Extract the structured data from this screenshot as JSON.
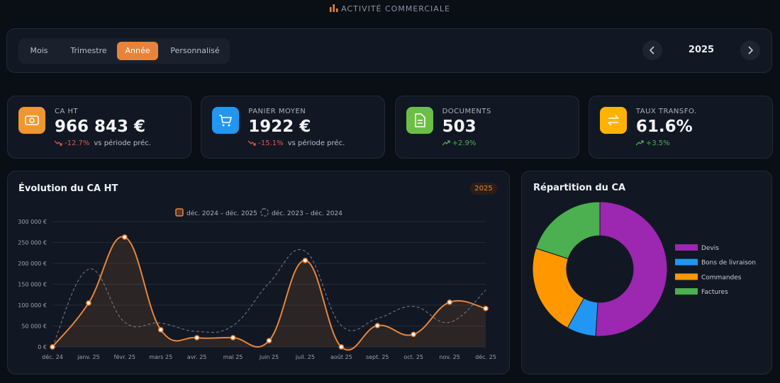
{
  "header": {
    "title": "ACTIVITÉ COMMERCIALE"
  },
  "tabs": [
    "Mois",
    "Trimestre",
    "Année",
    "Personnalisé"
  ],
  "active_tab_index": 2,
  "year": "2025",
  "kpis": [
    {
      "label": "CA HT",
      "value": "966 843 €",
      "change": "-12.7%",
      "trend": "down",
      "note": "vs période préc.",
      "color": "#f0962e"
    },
    {
      "label": "PANIER MOYEN",
      "value": "1922 €",
      "change": "-15.1%",
      "trend": "down",
      "note": "vs période préc.",
      "color": "#2196f3"
    },
    {
      "label": "DOCUMENTS",
      "value": "503",
      "change": "+2.9%",
      "trend": "up",
      "color": "#6cbf45"
    },
    {
      "label": "TAUX TRANSFO.",
      "value": "61.6%",
      "change": "+3.5%",
      "trend": "up",
      "color": "#ffb300"
    }
  ],
  "chart_data": [
    {
      "type": "line",
      "title": "Évolution du CA HT",
      "badge": "2025",
      "categories": [
        "déc. 24",
        "janv. 25",
        "févr. 25",
        "mars 25",
        "avr. 25",
        "mai 25",
        "juin 25",
        "juil. 25",
        "août 25",
        "sept. 25",
        "oct. 25",
        "nov. 25",
        "déc. 25"
      ],
      "series": [
        {
          "name": "déc. 2024 – déc. 2025",
          "color": "#e8843a",
          "values": [
            0,
            105000,
            263000,
            41000,
            22000,
            22000,
            15000,
            207000,
            0,
            51000,
            30000,
            107000,
            92000
          ]
        },
        {
          "name": "déc. 2023 – déc. 2024",
          "color": "#7d8593",
          "values": [
            0,
            186000,
            59000,
            57000,
            37000,
            51000,
            153000,
            229000,
            51000,
            68000,
            97000,
            59000,
            136000
          ]
        }
      ],
      "ylim": [
        0,
        300000
      ],
      "yticks": [
        {
          "value": 0,
          "label": "0 €"
        },
        {
          "value": 50000,
          "label": "50 000 €"
        },
        {
          "value": 100000,
          "label": "100 000 €"
        },
        {
          "value": 150000,
          "label": "150 000 €"
        },
        {
          "value": 200000,
          "label": "200 000 €"
        },
        {
          "value": 250000,
          "label": "250 000 €"
        },
        {
          "value": 300000,
          "label": "300 000 €"
        }
      ],
      "grid": true
    },
    {
      "type": "donut",
      "title": "Répartition du CA",
      "categories": [
        "Devis",
        "Bons de livraison",
        "Commandes",
        "Factures"
      ],
      "values": [
        51,
        7,
        22,
        20
      ],
      "colors": [
        "#9c27b0",
        "#2196f3",
        "#ff9800",
        "#4caf50"
      ]
    }
  ]
}
